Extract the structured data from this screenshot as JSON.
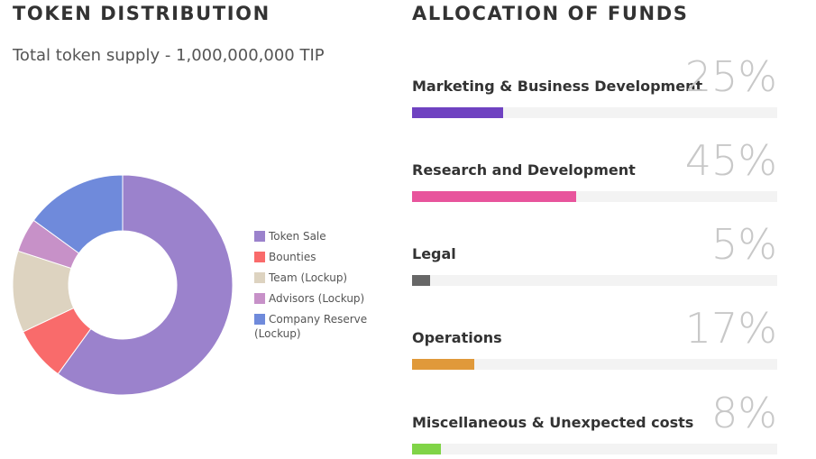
{
  "token_distribution": {
    "title": "TOKEN DISTRIBUTION",
    "supply_text": "Total token supply - 1,000,000,000 TIP"
  },
  "allocation": {
    "title": "ALLOCATION OF FUNDS",
    "items": [
      {
        "label": "Marketing & Business Development",
        "percent_text": "25%",
        "value": 25,
        "color": "#6f42c1"
      },
      {
        "label": "Research and Development",
        "percent_text": "45%",
        "value": 45,
        "color": "#e8549c"
      },
      {
        "label": "Legal",
        "percent_text": "5%",
        "value": 5,
        "color": "#676767"
      },
      {
        "label": "Operations",
        "percent_text": "17%",
        "value": 17,
        "color": "#e0993a"
      },
      {
        "label": "Miscellaneous & Unexpected costs",
        "percent_text": "8%",
        "value": 8,
        "color": "#80d447"
      }
    ]
  },
  "chart_data": [
    {
      "type": "pie",
      "categories": [
        "Token Sale",
        "Bounties",
        "Team (Lockup)",
        "Advisors (Lockup)",
        "Company Reserve (Lockup)"
      ],
      "values": [
        60,
        8,
        12,
        5,
        15
      ],
      "colors": [
        "#9b82cc",
        "#f96b6b",
        "#ddd3c0",
        "#c791c8",
        "#6f8adb"
      ],
      "legend_position": "right"
    },
    {
      "type": "bar",
      "categories": [
        "Marketing & Business Development",
        "Research and Development",
        "Legal",
        "Operations",
        "Miscellaneous & Unexpected costs"
      ],
      "values": [
        25,
        45,
        5,
        17,
        8
      ],
      "ylim": [
        0,
        100
      ]
    }
  ]
}
